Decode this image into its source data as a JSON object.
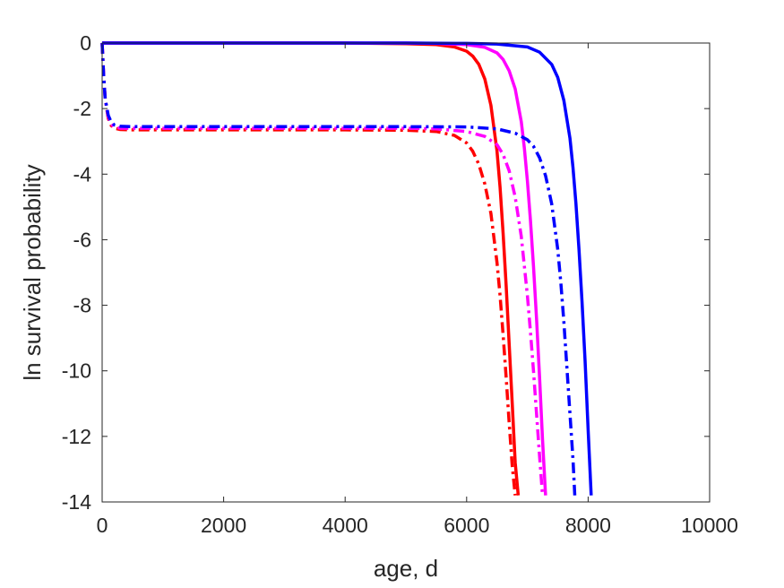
{
  "chart_data": {
    "type": "line",
    "title": "",
    "xlabel": "age, d",
    "ylabel": "ln survival probability",
    "xlim": [
      0,
      10000
    ],
    "ylim": [
      -14,
      0
    ],
    "xticks": [
      0,
      2000,
      4000,
      6000,
      8000,
      10000
    ],
    "xtick_labels": [
      "0",
      "2000",
      "4000",
      "6000",
      "8000",
      "10000"
    ],
    "yticks": [
      0,
      -2,
      -4,
      -6,
      -8,
      -10,
      -12,
      -14
    ],
    "ytick_labels": [
      "0",
      "-2",
      "-4",
      "-6",
      "-8",
      "-10",
      "-12",
      "-14"
    ],
    "grid": false,
    "legend": "none",
    "series": [
      {
        "color": "#ff0000",
        "style": "solid",
        "x": [
          0,
          2000,
          4000,
          5000,
          5500,
          5800,
          6000,
          6100,
          6200,
          6300,
          6400,
          6500,
          6550,
          6600,
          6650,
          6700,
          6750,
          6800,
          6850
        ],
        "y": [
          0,
          0,
          0,
          -0.02,
          -0.05,
          -0.12,
          -0.25,
          -0.4,
          -0.65,
          -1.1,
          -1.9,
          -3.3,
          -4.4,
          -5.8,
          -7.4,
          -9.2,
          -11.0,
          -12.8,
          -13.8
        ]
      },
      {
        "color": "#ff00ff",
        "style": "solid",
        "x": [
          0,
          2000,
          4000,
          5000,
          5500,
          6000,
          6300,
          6500,
          6600,
          6700,
          6800,
          6900,
          6950,
          7000,
          7050,
          7100,
          7150,
          7200,
          7250,
          7300
        ],
        "y": [
          0,
          0,
          0,
          0,
          -0.01,
          -0.05,
          -0.13,
          -0.3,
          -0.5,
          -0.85,
          -1.4,
          -2.4,
          -3.2,
          -4.2,
          -5.4,
          -6.8,
          -8.4,
          -10.2,
          -12.1,
          -13.8
        ]
      },
      {
        "color": "#0000ff",
        "style": "solid",
        "x": [
          0,
          2000,
          4000,
          5000,
          6000,
          6500,
          7000,
          7200,
          7400,
          7500,
          7600,
          7700,
          7750,
          7800,
          7850,
          7900,
          7950,
          8000,
          8050
        ],
        "y": [
          0,
          0,
          0,
          0,
          -0.01,
          -0.03,
          -0.12,
          -0.28,
          -0.65,
          -1.05,
          -1.75,
          -2.9,
          -3.8,
          -4.9,
          -6.3,
          -7.9,
          -9.7,
          -11.8,
          -13.8
        ]
      },
      {
        "color": "#ff0000",
        "style": "dashdot",
        "x": [
          0,
          25,
          50,
          100,
          150,
          200,
          300,
          500,
          1000,
          2000,
          4000,
          5000,
          5500,
          5800,
          6000,
          6100,
          6200,
          6300,
          6400,
          6500,
          6550,
          6600,
          6650,
          6700,
          6750,
          6800
        ],
        "y": [
          0,
          -1.0,
          -1.7,
          -2.3,
          -2.52,
          -2.6,
          -2.64,
          -2.65,
          -2.65,
          -2.65,
          -2.65,
          -2.66,
          -2.7,
          -2.82,
          -3.05,
          -3.3,
          -3.7,
          -4.3,
          -5.2,
          -6.7,
          -7.7,
          -8.9,
          -10.2,
          -11.6,
          -12.9,
          -13.8
        ]
      },
      {
        "color": "#ff00ff",
        "style": "dashdot",
        "x": [
          0,
          25,
          50,
          100,
          150,
          200,
          300,
          500,
          1000,
          2000,
          4000,
          5000,
          5500,
          6000,
          6300,
          6500,
          6600,
          6700,
          6800,
          6900,
          7000,
          7050,
          7100,
          7150,
          7200,
          7250
        ],
        "y": [
          0,
          -1.0,
          -1.7,
          -2.25,
          -2.48,
          -2.56,
          -2.6,
          -2.6,
          -2.6,
          -2.6,
          -2.6,
          -2.6,
          -2.62,
          -2.7,
          -2.85,
          -3.1,
          -3.4,
          -3.9,
          -4.7,
          -5.9,
          -7.7,
          -8.8,
          -10.0,
          -11.3,
          -12.6,
          -13.8
        ]
      },
      {
        "color": "#0000ff",
        "style": "dashdot",
        "x": [
          0,
          25,
          50,
          100,
          150,
          200,
          300,
          500,
          1000,
          2000,
          4000,
          5000,
          6000,
          6500,
          6800,
          7000,
          7100,
          7200,
          7300,
          7400,
          7500,
          7550,
          7600,
          7650,
          7700,
          7750,
          7780
        ],
        "y": [
          0,
          -1.0,
          -1.7,
          -2.2,
          -2.42,
          -2.5,
          -2.54,
          -2.55,
          -2.55,
          -2.55,
          -2.55,
          -2.55,
          -2.56,
          -2.62,
          -2.75,
          -2.95,
          -3.15,
          -3.5,
          -4.05,
          -4.9,
          -6.3,
          -7.3,
          -8.5,
          -9.9,
          -11.3,
          -12.7,
          -13.8
        ]
      }
    ]
  }
}
